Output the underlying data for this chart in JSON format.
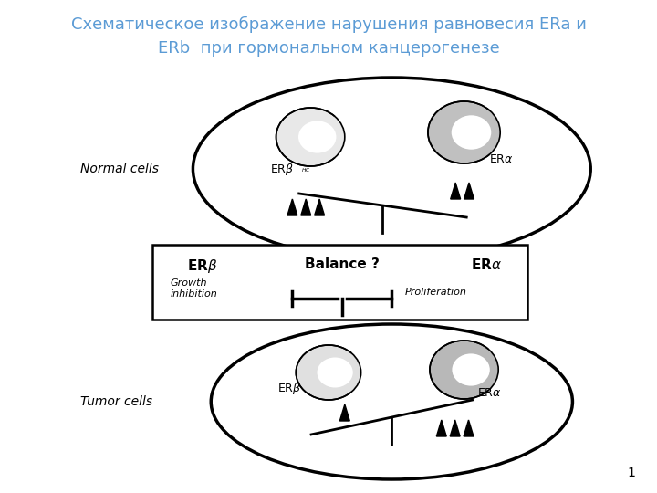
{
  "title_line1": "Схематическое изображение нарушения равновесия ERa и",
  "title_line2": "ERb  при гормональном канцерогенезе",
  "title_color": "#5b9bd5",
  "title_fontsize": 13,
  "bg_color": "#ffffff",
  "page_number": "1",
  "normal_cells_label": "Normal cells",
  "tumor_cells_label": "Tumor cells",
  "balance_box_text_erb": "ERβ",
  "balance_box_text_balance": "Balance ?",
  "balance_box_text_era": "ERα",
  "growth_inhibition": "Growth\ninhibition",
  "proliferation": "Proliferation"
}
